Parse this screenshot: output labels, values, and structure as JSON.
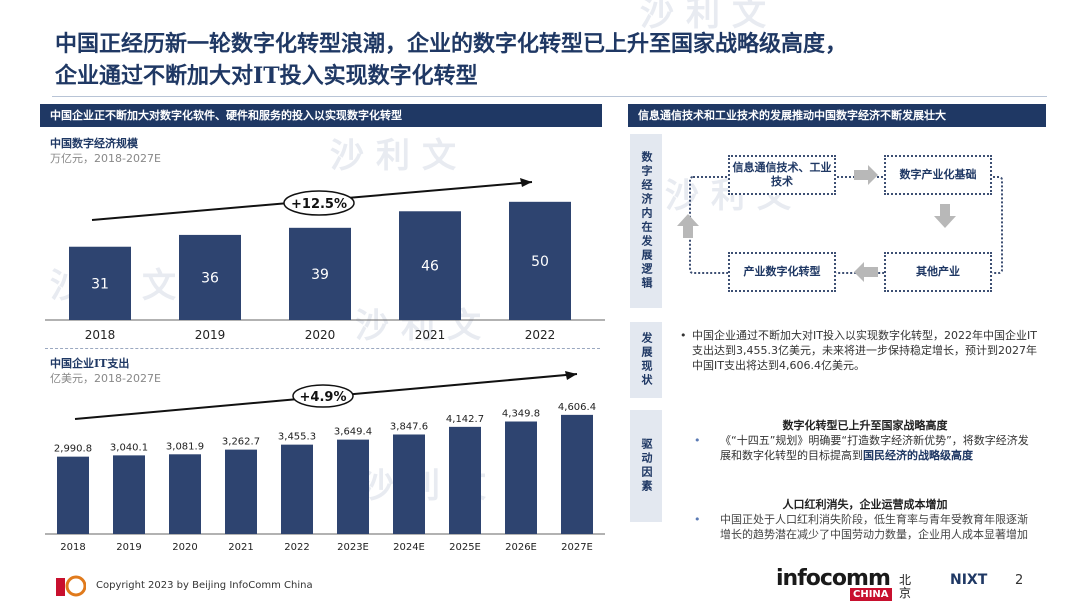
{
  "title": {
    "line1": "中国正经历新一轮数字化转型浪潮，企业的数字化转型已上升至国家战略级高度，",
    "line2": "企业通过不断加大对IT投入实现数字化转型"
  },
  "left_header": "中国企业正不断加大对数字化软件、硬件和服务的投入以实现数字化转型",
  "right_header": "信息通信技术和工业技术的发展推动中国数字经济不断发展壮大",
  "watermark": "沙利文",
  "chart_data": [
    {
      "type": "bar",
      "title": "中国数字经济规模",
      "unit": "万亿元，2018-2027E",
      "categories": [
        "2018",
        "2019",
        "2020",
        "2021",
        "2022"
      ],
      "values": [
        31,
        36,
        39,
        46,
        50
      ],
      "value_labels": [
        "31",
        "36",
        "39",
        "46",
        "50"
      ],
      "cagr": "+12.5%",
      "ylim": [
        0,
        55
      ],
      "labels_inside": true
    },
    {
      "type": "bar",
      "title": "中国企业IT支出",
      "unit": "亿美元，2018-2027E",
      "categories": [
        "2018",
        "2019",
        "2020",
        "2021",
        "2022",
        "2023E",
        "2024E",
        "2025E",
        "2026E",
        "2027E"
      ],
      "values": [
        2990.8,
        3040.1,
        3081.9,
        3262.7,
        3455.3,
        3649.4,
        3847.6,
        4142.7,
        4349.8,
        4606.4
      ],
      "value_labels": [
        "2,990.8",
        "3,040.1",
        "3,081.9",
        "3,262.7",
        "3,455.3",
        "3,649.4",
        "3,847.6",
        "4,142.7",
        "4,349.8",
        "4,606.4"
      ],
      "cagr": "+4.9%",
      "ylim": [
        0,
        5800
      ],
      "labels_inside": false
    }
  ],
  "logic": {
    "tag": "数字经济内在发展逻辑",
    "boxes": {
      "ict": "信息通信技术、工业技术",
      "digital_industrialization": "数字产业化基础",
      "industrial_digitalization": "产业数字化转型",
      "other": "其他产业"
    }
  },
  "status": {
    "tag": "发展现状",
    "bullet": "中国企业通过不断加大对IT投入以实现数字化转型，2022年中国企业IT支出达到3,455.3亿美元，未来将进一步保持稳定增长，预计到2027年中国IT支出将达到4,606.4亿美元。"
  },
  "drivers": {
    "tag": "驱动因素",
    "items": [
      {
        "heading": "数字化转型已上升至国家战略高度",
        "text_a": "《“十四五”规划》明确要“打造数字经济新优势”，将数字经济发展和数字化转型的目标提高到",
        "text_b": "国民经济的战略级高度"
      },
      {
        "heading": "人口红利消失，企业运营成本增加",
        "text_a": "中国正处于人口红利消失阶段，低生育率与青年受教育年限逐渐增长的趋势潜在减少了中国劳动力数量，企业用人成本显著增加",
        "text_b": ""
      }
    ]
  },
  "footer": {
    "copyright": "Copyright 2023 by Beijing InfoComm  China",
    "page": "2",
    "brand": "infocomm",
    "brand_china": "CHINA",
    "brand_bj": "北京",
    "brand2": "NIXT"
  },
  "colors": {
    "navy": "#1f3864",
    "bar": "#2e4470",
    "accent_red": "#c8102e"
  }
}
